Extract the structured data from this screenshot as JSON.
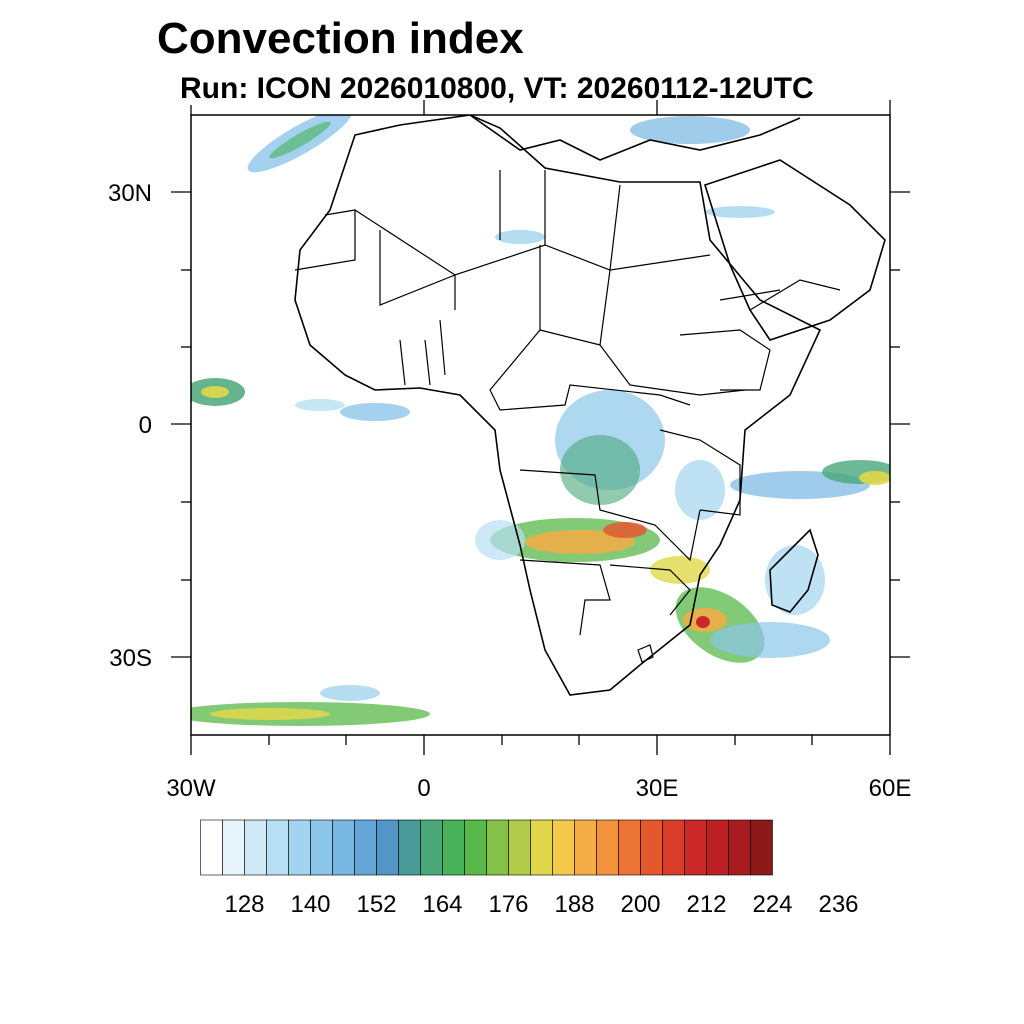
{
  "title": "Convection index",
  "subtitle": "Run: ICON 2026010800,  VT: 20260112-12UTC",
  "axes": {
    "lat_labels": [
      "30N",
      "0",
      "30S"
    ],
    "lon_labels": [
      "30W",
      "0",
      "30E",
      "60E"
    ],
    "lon_range": [
      -30,
      60
    ],
    "lat_range": [
      -40,
      40
    ]
  },
  "colorbar": {
    "tick_labels": [
      "128",
      "140",
      "152",
      "164",
      "176",
      "188",
      "200",
      "212",
      "224",
      "236"
    ],
    "colors": [
      "#ffffff",
      "#e8f4fc",
      "#cfe9f7",
      "#b8dff3",
      "#a2d4ef",
      "#8cc6ea",
      "#78b7e2",
      "#64a6d8",
      "#5296c8",
      "#4a9a9a",
      "#4aa77a",
      "#48b25a",
      "#5ab84a",
      "#86c24a",
      "#b2cc4a",
      "#e0d84a",
      "#f4c84a",
      "#f4ac44",
      "#f2923c",
      "#ec7434",
      "#e4582e",
      "#da3c2a",
      "#cc2828",
      "#bc2024",
      "#a81c20",
      "#8c1818"
    ]
  }
}
